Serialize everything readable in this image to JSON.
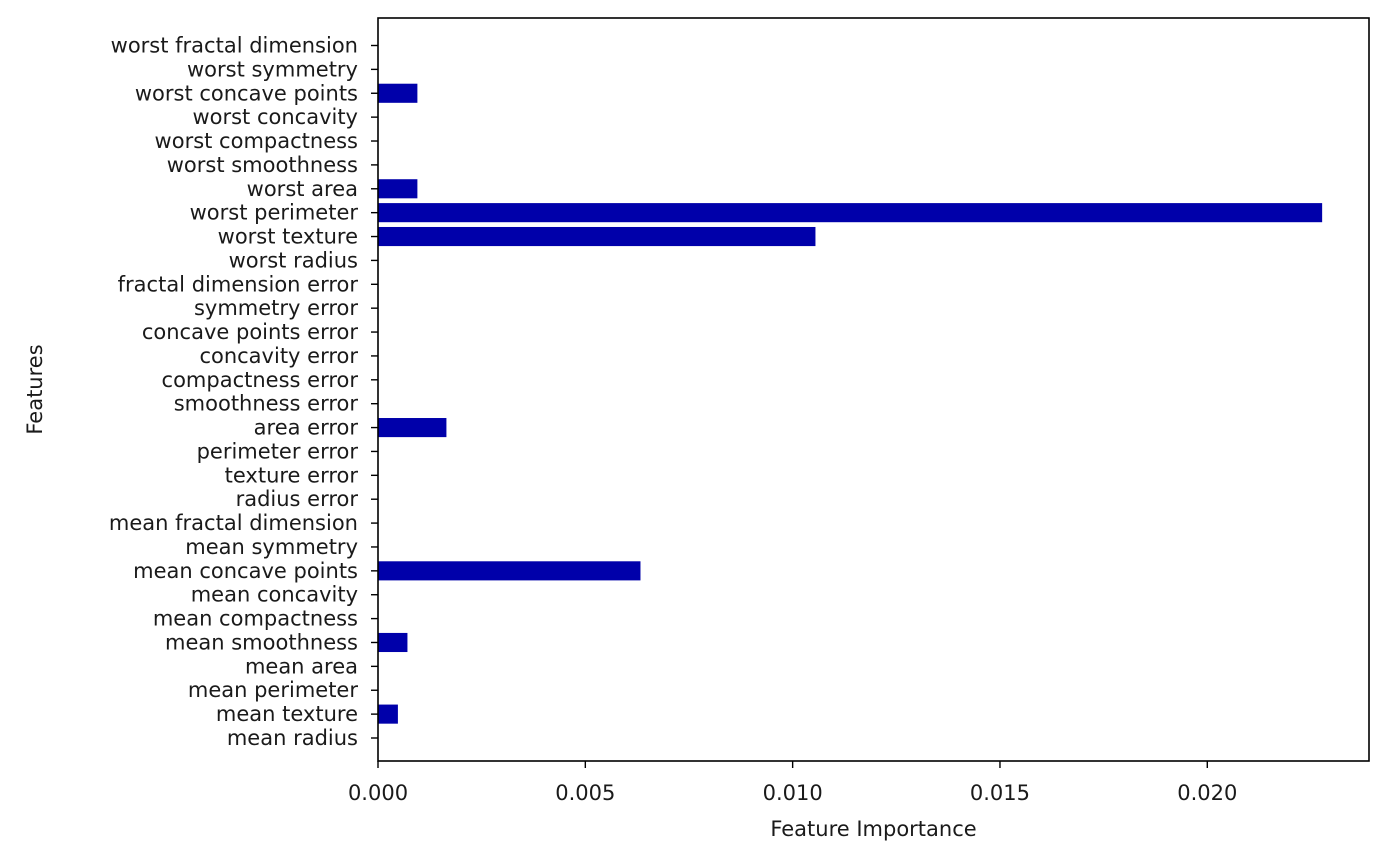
{
  "chart_data": {
    "type": "bar",
    "orientation": "horizontal",
    "title": "",
    "xlabel": "Feature Importance",
    "ylabel": "Features",
    "xlim": [
      0,
      0.0239
    ],
    "xticks": [
      "0.000",
      "0.005",
      "0.010",
      "0.015",
      "0.020"
    ],
    "xtick_values": [
      0,
      0.005,
      0.01,
      0.015,
      0.02
    ],
    "grid": false,
    "bar_color": "#0000aa",
    "categories": [
      "mean radius",
      "mean texture",
      "mean perimeter",
      "mean area",
      "mean smoothness",
      "mean compactness",
      "mean concavity",
      "mean concave points",
      "mean symmetry",
      "mean fractal dimension",
      "radius error",
      "texture error",
      "perimeter error",
      "area error",
      "smoothness error",
      "compactness error",
      "concavity error",
      "concave points error",
      "symmetry error",
      "fractal dimension error",
      "worst radius",
      "worst texture",
      "worst perimeter",
      "worst area",
      "worst smoothness",
      "worst compactness",
      "worst concavity",
      "worst concave points",
      "worst symmetry",
      "worst fractal dimension"
    ],
    "values": [
      0.0,
      0.00048,
      0.0,
      0.0,
      0.00071,
      0.0,
      0.0,
      0.00633,
      0.0,
      0.0,
      0.0,
      0.0,
      0.0,
      0.00165,
      0.0,
      0.0,
      0.0,
      0.0,
      0.0,
      0.0,
      0.0,
      0.01055,
      0.02277,
      0.00095,
      0.0,
      0.0,
      0.0,
      0.00095,
      0.0,
      0.0
    ]
  }
}
